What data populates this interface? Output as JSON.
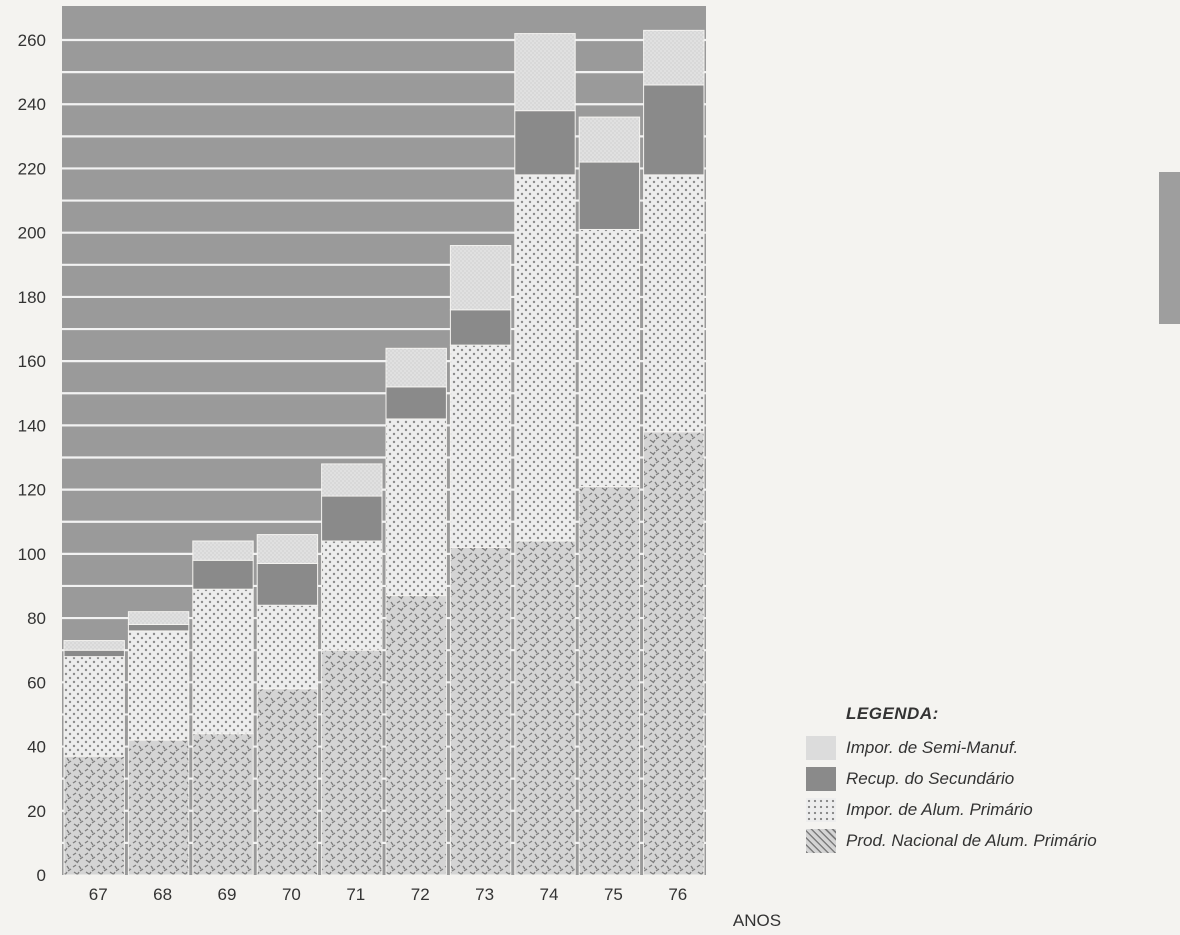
{
  "chart_data": {
    "type": "bar",
    "stacked": true,
    "categories": [
      "67",
      "68",
      "69",
      "70",
      "71",
      "72",
      "73",
      "74",
      "75",
      "76"
    ],
    "series": [
      {
        "name": "Prod. Nacional de Alum. Primário",
        "values": [
          37,
          42,
          44,
          58,
          70,
          87,
          102,
          104,
          121,
          138
        ],
        "color": "#bdbdbd",
        "pattern": "dashes"
      },
      {
        "name": "Impor. de Alum. Primário",
        "values": [
          31,
          34,
          45,
          26,
          34,
          55,
          63,
          114,
          80,
          80
        ],
        "color": "#e8e8e8",
        "pattern": "dots"
      },
      {
        "name": "Recup. do Secundário",
        "values": [
          2,
          2,
          9,
          13,
          14,
          10,
          11,
          20,
          21,
          28
        ],
        "color": "#8a8a8a",
        "pattern": "solid"
      },
      {
        "name": "Impor. de Semi-Manuf.",
        "values": [
          3,
          4,
          6,
          9,
          10,
          12,
          20,
          24,
          14,
          17
        ],
        "color": "#dcdcdc",
        "pattern": "fine"
      }
    ],
    "xlabel": "ANOS",
    "ylabel": "",
    "ylim": [
      0,
      270
    ],
    "yticks": [
      0,
      20,
      40,
      60,
      80,
      100,
      120,
      140,
      160,
      180,
      200,
      220,
      240,
      260
    ],
    "legend_title": "LEGENDA:",
    "legend_position": "bottom-right",
    "background": "#9a9a9a",
    "grid": true
  }
}
